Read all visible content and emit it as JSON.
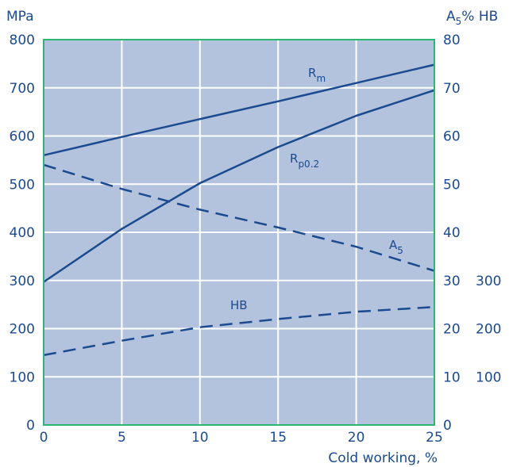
{
  "chart_data": {
    "type": "line",
    "xlabel": "Cold working, %",
    "ylabel_left": "MPa",
    "ylabel_right_parts": [
      "A",
      "5",
      "% HB"
    ],
    "xlim": [
      0,
      25
    ],
    "ylim_left": [
      0,
      800
    ],
    "ylim_right": [
      0,
      80
    ],
    "grid": true,
    "x_ticks": [
      "0",
      "5",
      "10",
      "15",
      "20",
      "25"
    ],
    "y_left_ticks": [
      "0",
      "100",
      "200",
      "300",
      "400",
      "500",
      "600",
      "700",
      "800"
    ],
    "y_right_a5_ticks": [
      "0",
      "10",
      "20",
      "30",
      "40",
      "50",
      "60",
      "70",
      "80"
    ],
    "y_right_hb_ticks": [
      "100",
      "200",
      "300"
    ],
    "series": [
      {
        "name": "Rm",
        "label_parts": [
          "R",
          "m"
        ],
        "axis": "left",
        "style": "solid",
        "x": [
          0,
          5,
          10,
          15,
          20,
          25
        ],
        "y": [
          560,
          598,
          635,
          672,
          710,
          748
        ]
      },
      {
        "name": "Rp0.2",
        "label_parts": [
          "R",
          "p0.2"
        ],
        "axis": "left",
        "style": "solid",
        "x": [
          0,
          5,
          10,
          15,
          20,
          25
        ],
        "y": [
          297,
          407,
          502,
          577,
          642,
          695
        ]
      },
      {
        "name": "A5",
        "label_parts": [
          "A",
          "5"
        ],
        "axis": "right",
        "style": "dashed",
        "x": [
          0,
          5,
          10,
          15,
          20,
          25
        ],
        "y": [
          54,
          49,
          44.7,
          41,
          37,
          32
        ]
      },
      {
        "name": "HB",
        "label_parts": [
          "HB",
          ""
        ],
        "axis": "right",
        "style": "dashed",
        "x": [
          0,
          5,
          10,
          15,
          20,
          25
        ],
        "y": [
          145,
          175,
          203,
          220,
          235,
          245
        ]
      }
    ]
  },
  "colors": {
    "plot_background": "#b3c3dd",
    "grid": "#ffffff",
    "frame": "#2bb673",
    "line": "#1b4a8f",
    "text": "#1b4a8f"
  }
}
